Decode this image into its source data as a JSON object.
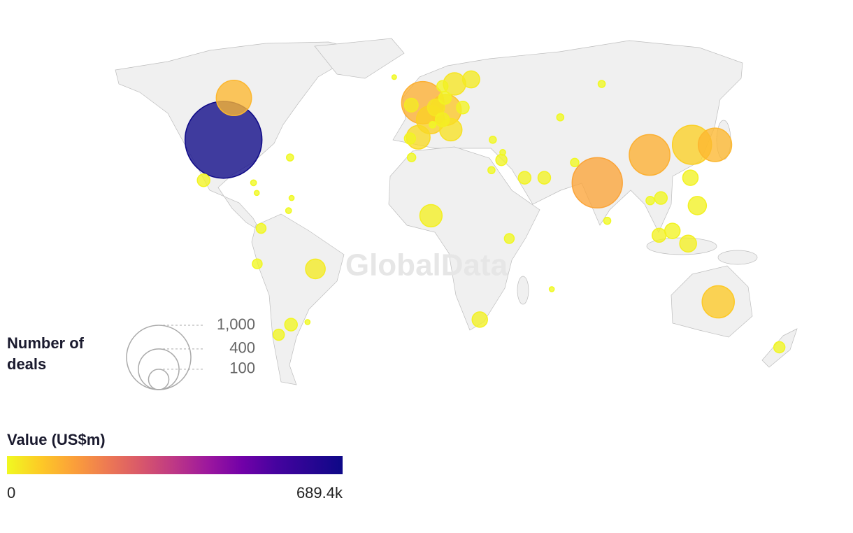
{
  "watermark": "GlobalData",
  "legend_size": {
    "title": "Number of deals",
    "ticks": [
      {
        "value": 1000,
        "label": "1,000"
      },
      400,
      100
    ]
  },
  "legend_color": {
    "title": "Value (US$m)",
    "ticks": [
      0,
      {
        "value": 689400,
        "label": "689.4k"
      }
    ]
  },
  "chart_data": {
    "type": "bubble-map",
    "lon": [
      -98,
      78,
      -2,
      105,
      127,
      -104,
      138,
      134,
      10,
      2,
      -4,
      16,
      12,
      -50,
      2,
      26,
      5,
      25,
      110,
      122,
      121,
      104,
      117,
      -8,
      8,
      -64,
      106,
      54,
      45,
      19,
      10,
      9,
      -71,
      174,
      35,
      -102,
      -76,
      -74,
      37,
      101,
      -8,
      69,
      32,
      30,
      81,
      68,
      100,
      -7,
      -64,
      -79,
      -77,
      -62,
      -56,
      57,
      -19,
      36,
      3,
      -61
    ],
    "lat": [
      39,
      22,
      54,
      33,
      37,
      56,
      37,
      -25,
      51,
      47,
      40,
      62,
      43,
      -12,
      9,
      64,
      52,
      -32,
      3,
      13,
      24,
      1.3,
      -2,
      53,
      47,
      -34,
      16,
      24,
      24,
      52,
      56,
      61,
      -38,
      -43,
      31,
      23,
      -10,
      4,
      0,
      15,
      39.5,
      30,
      39,
      27,
      7,
      48,
      62,
      32,
      32,
      22,
      18,
      11,
      -33,
      -20,
      65,
      34,
      45,
      16
    ],
    "deals": [
      1430,
      610,
      430,
      400,
      370,
      300,
      270,
      250,
      230,
      190,
      135,
      120,
      120,
      93,
      120,
      70,
      70,
      57,
      57,
      80,
      57,
      47,
      68,
      45,
      47,
      38,
      38,
      38,
      38,
      38,
      38,
      30,
      30,
      30,
      30,
      38,
      23,
      23,
      23,
      17,
      30,
      17,
      12,
      12,
      12,
      12,
      12,
      17,
      12,
      8,
      6,
      8,
      6,
      6,
      5,
      8,
      10,
      6
    ],
    "values": [
      689400,
      130000,
      110000,
      110000,
      60000,
      100000,
      100000,
      70000,
      75000,
      60000,
      45000,
      30000,
      35000,
      20000,
      15000,
      20000,
      30000,
      12000,
      9000,
      12000,
      10000,
      12000,
      15000,
      20000,
      15000,
      5000,
      5000,
      10000,
      9000,
      8000,
      9000,
      10000,
      6000,
      5000,
      7000,
      8000,
      3000,
      3000,
      2500,
      2000,
      8000,
      2000,
      3000,
      2000,
      1500,
      1500,
      2000,
      2000,
      1500,
      800,
      500,
      700,
      600,
      700,
      500,
      1500,
      2000,
      600
    ]
  }
}
